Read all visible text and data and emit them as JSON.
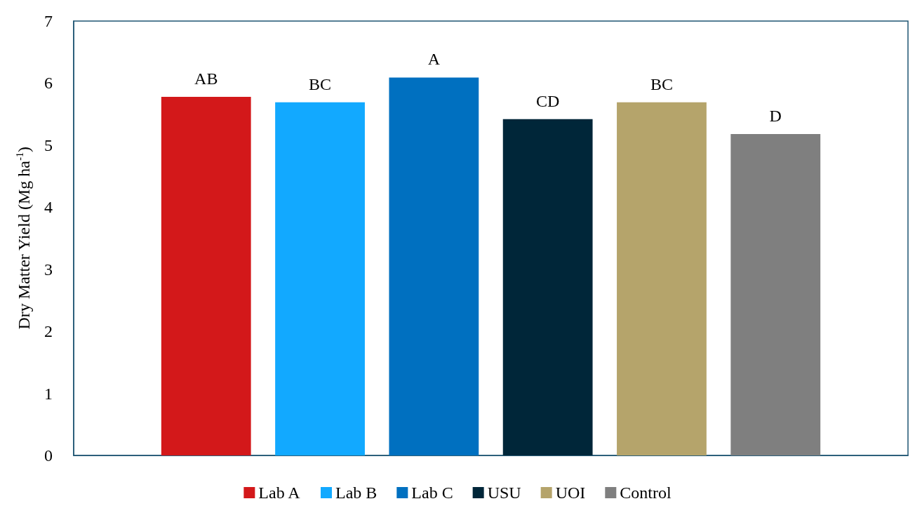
{
  "chart_data": {
    "type": "bar",
    "ylabel": "Dry Matter Yield (Mg ha$^{-1}$)",
    "categories": [
      null
    ],
    "series": [
      {
        "name": "Lab A",
        "color": "#d3181a",
        "values": [
          5.78
        ],
        "value_labels": [
          "AB"
        ]
      },
      {
        "name": "Lab B",
        "color": "#12a9ff",
        "values": [
          5.69
        ],
        "value_labels": [
          "BC"
        ]
      },
      {
        "name": "Lab C",
        "color": "#0070c0",
        "values": [
          6.09
        ],
        "value_labels": [
          "A"
        ]
      },
      {
        "name": "USU",
        "color": "#002639",
        "values": [
          5.42
        ],
        "value_labels": [
          "CD"
        ]
      },
      {
        "name": "UOI",
        "color": "#b5a46b",
        "values": [
          5.69
        ],
        "value_labels": [
          "BC"
        ]
      },
      {
        "name": "Control",
        "color": "#7f7f7f",
        "values": [
          5.18
        ],
        "value_labels": [
          "D"
        ]
      }
    ],
    "ylim": [
      0,
      7
    ],
    "yticks": [
      0,
      1,
      2,
      3,
      4,
      5,
      6,
      7
    ],
    "grid": false,
    "legend": "bottom"
  }
}
